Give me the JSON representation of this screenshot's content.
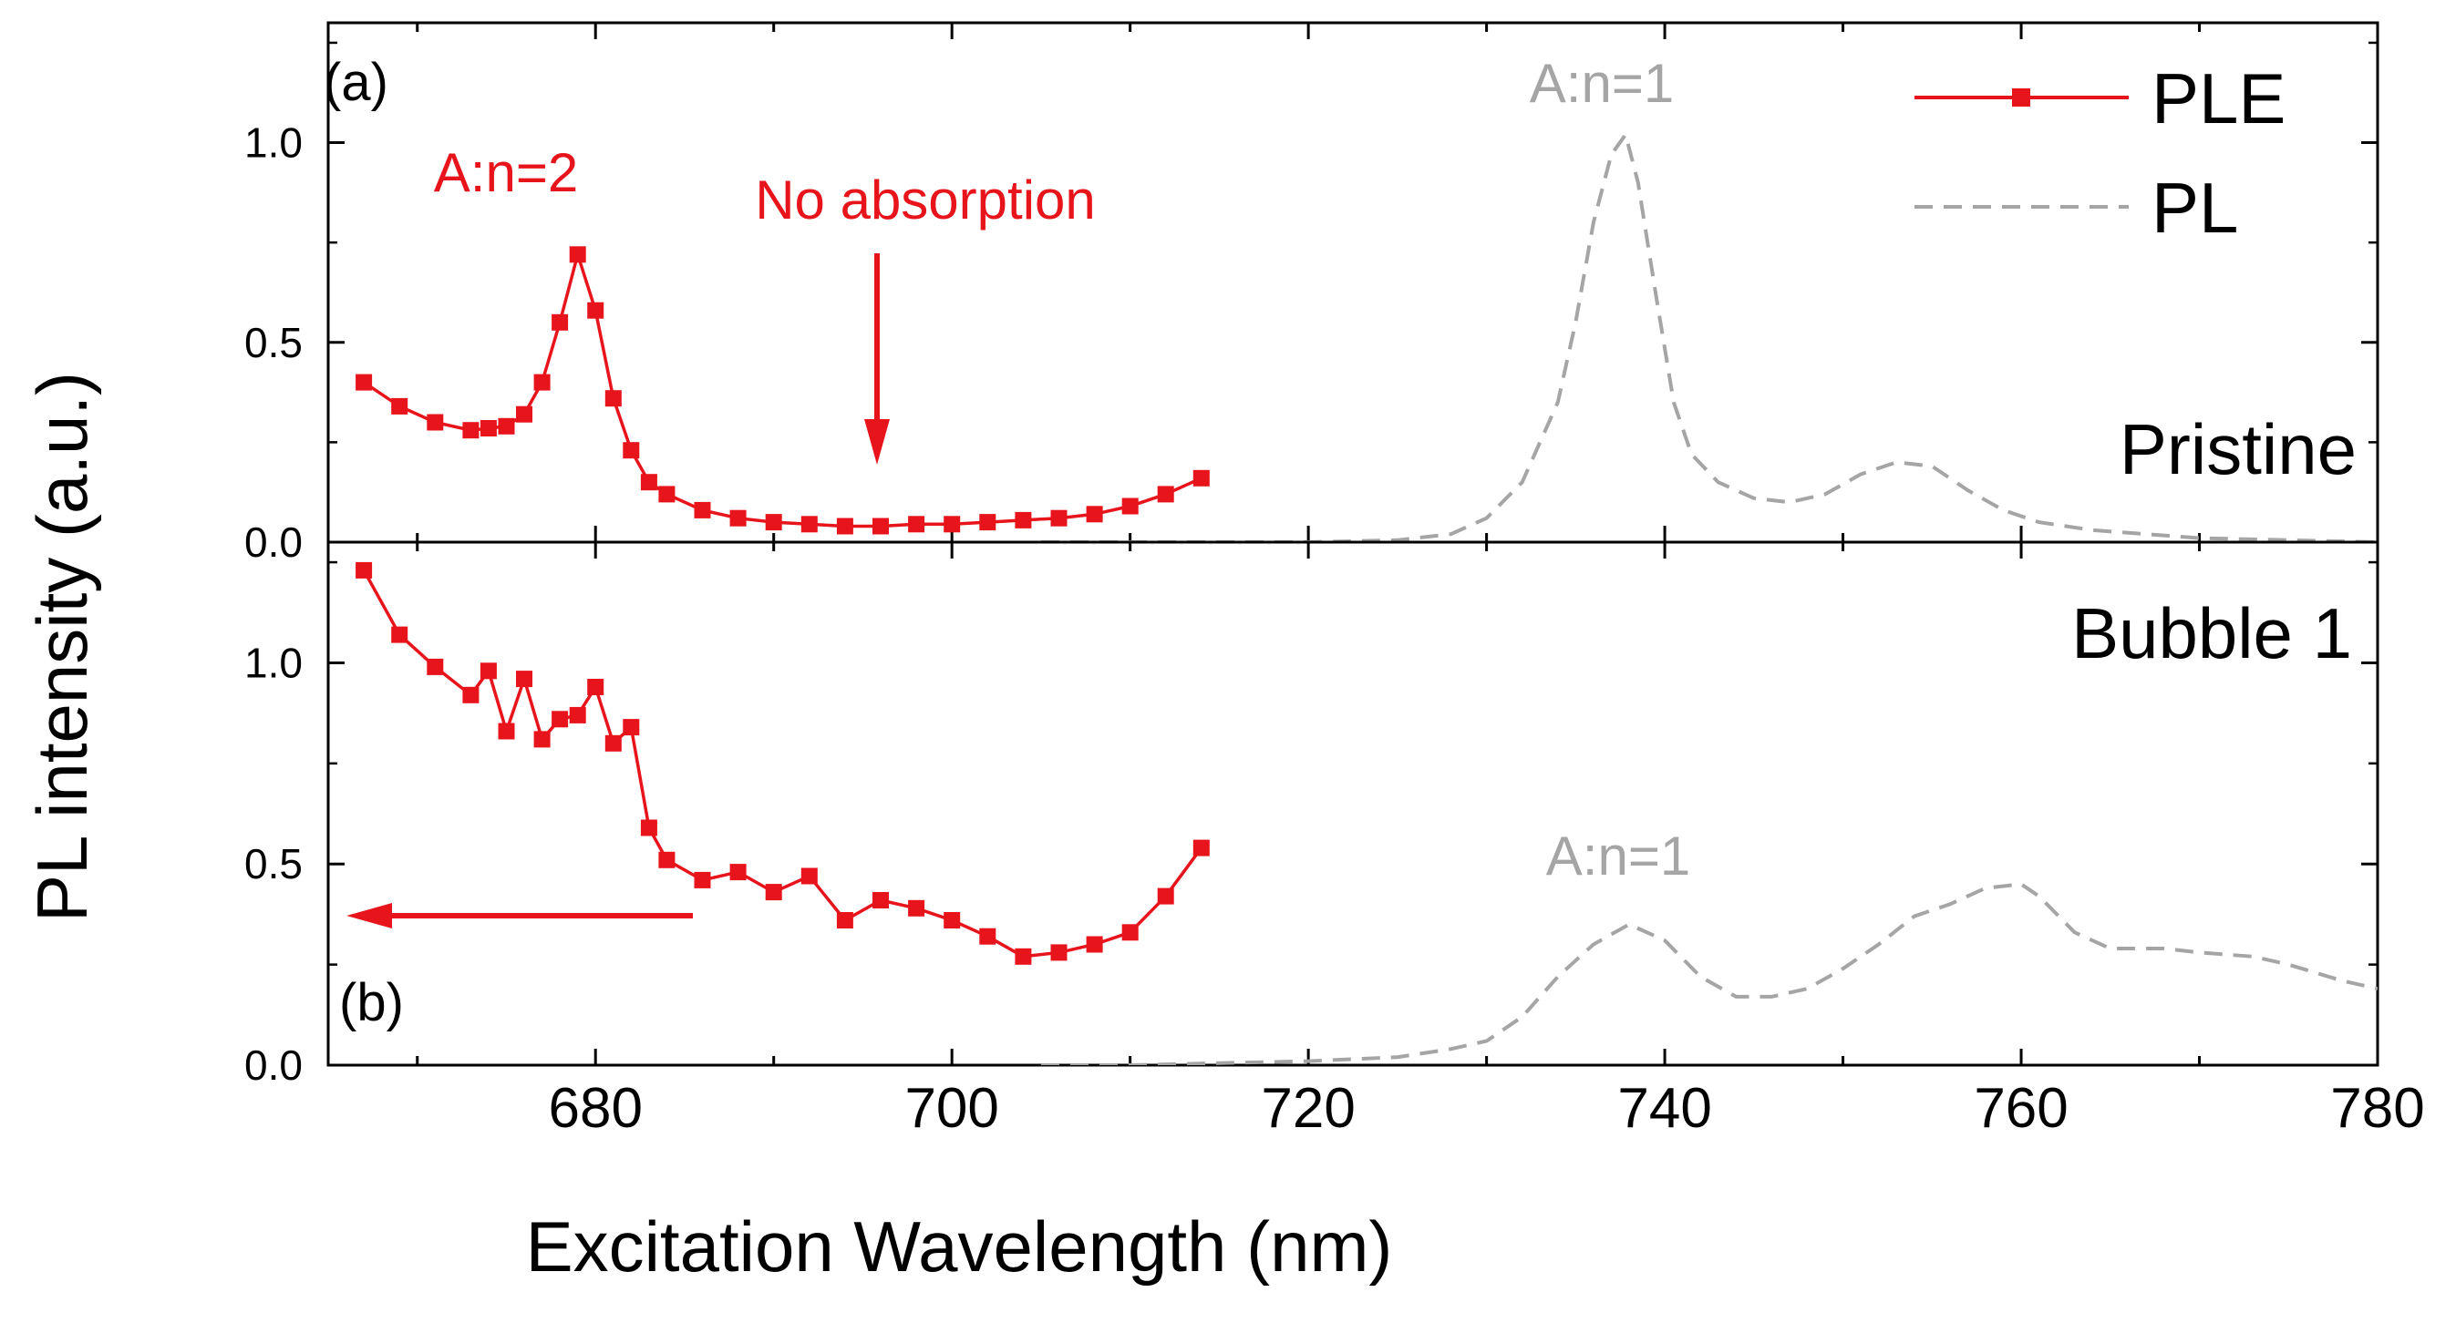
{
  "chart_data": {
    "type": "line",
    "xlabel": "Excitation Wavelength (nm)",
    "ylabel": "PL intensity (a.u.)",
    "xlim": [
      665,
      780
    ],
    "x_ticks": [
      680,
      700,
      720,
      740,
      760,
      780
    ],
    "x_tick_labels": [
      "680",
      "700",
      "720",
      "740",
      "760",
      "780"
    ],
    "legend": [
      {
        "name": "PLE",
        "style": "red line with square markers",
        "color": "#e8141b"
      },
      {
        "name": "PL",
        "style": "gray dashed line",
        "color": "#a5a5a5"
      }
    ],
    "legend_position": "top-right",
    "panels": [
      {
        "id": "a",
        "tag": "(a)",
        "sample_label": "Pristine",
        "ylim": [
          0,
          1.3
        ],
        "y_ticks": [
          0,
          0.5,
          1.0
        ],
        "y_tick_labels": [
          "0.0",
          "0.5",
          "1.0"
        ],
        "series": [
          {
            "name": "PLE",
            "x": [
              667,
              669,
              671,
              673,
              674,
              675,
              676,
              677,
              678,
              679,
              680,
              681,
              682,
              683,
              684,
              686,
              688,
              690,
              692,
              694,
              696,
              698,
              700,
              702,
              704,
              706,
              708,
              710,
              712,
              714
            ],
            "y": [
              0.4,
              0.34,
              0.3,
              0.28,
              0.285,
              0.29,
              0.32,
              0.4,
              0.55,
              0.72,
              0.58,
              0.36,
              0.23,
              0.15,
              0.12,
              0.08,
              0.06,
              0.05,
              0.045,
              0.04,
              0.04,
              0.045,
              0.045,
              0.05,
              0.055,
              0.06,
              0.07,
              0.09,
              0.12,
              0.16
            ]
          },
          {
            "name": "PL",
            "x": [
              705,
              710,
              715,
              720,
              725,
              728,
              730,
              732,
              734,
              735,
              736,
              737,
              737.8,
              738.5,
              739.5,
              740.5,
              741.5,
              743,
              745,
              747,
              749,
              751,
              753,
              755,
              757,
              759,
              761,
              764,
              767,
              770,
              775,
              780
            ],
            "y": [
              0,
              0,
              0,
              0,
              0.005,
              0.02,
              0.06,
              0.15,
              0.35,
              0.55,
              0.8,
              0.97,
              1.02,
              0.9,
              0.62,
              0.35,
              0.22,
              0.15,
              0.11,
              0.1,
              0.12,
              0.17,
              0.2,
              0.19,
              0.13,
              0.08,
              0.05,
              0.03,
              0.02,
              0.01,
              0.005,
              0.0
            ]
          }
        ],
        "annotations": [
          {
            "text": "A:n=2",
            "color": "red"
          },
          {
            "text": "No absorption",
            "color": "red",
            "arrow": "down",
            "x": 697
          },
          {
            "text": "A:n=1",
            "color": "gray"
          }
        ]
      },
      {
        "id": "b",
        "tag": "(b)",
        "sample_label": "Bubble 1",
        "ylim": [
          0,
          1.3
        ],
        "y_ticks": [
          0,
          0.5,
          1.0
        ],
        "y_tick_labels": [
          "0.0",
          "0.5",
          "1.0"
        ],
        "series": [
          {
            "name": "PLE",
            "x": [
              667,
              669,
              671,
              673,
              674,
              675,
              676,
              677,
              678,
              679,
              680,
              681,
              682,
              683,
              684,
              686,
              688,
              690,
              692,
              694,
              696,
              698,
              700,
              702,
              704,
              706,
              708,
              710,
              712,
              714
            ],
            "y": [
              1.23,
              1.07,
              0.99,
              0.92,
              0.98,
              0.83,
              0.96,
              0.81,
              0.86,
              0.87,
              0.94,
              0.8,
              0.84,
              0.59,
              0.51,
              0.46,
              0.48,
              0.43,
              0.47,
              0.36,
              0.41,
              0.39,
              0.36,
              0.32,
              0.27,
              0.28,
              0.3,
              0.33,
              0.42,
              0.54
            ]
          },
          {
            "name": "PL",
            "x": [
              705,
              710,
              715,
              720,
              725,
              728,
              730,
              732,
              734,
              736,
              738,
              740,
              742,
              744,
              746,
              748,
              750,
              752,
              754,
              756,
              758,
              760,
              761,
              763,
              765,
              768,
              770,
              773,
              775,
              778,
              780
            ],
            "y": [
              0,
              0,
              0.005,
              0.01,
              0.02,
              0.04,
              0.06,
              0.12,
              0.22,
              0.3,
              0.35,
              0.31,
              0.22,
              0.17,
              0.17,
              0.19,
              0.24,
              0.3,
              0.37,
              0.4,
              0.44,
              0.45,
              0.42,
              0.33,
              0.29,
              0.29,
              0.28,
              0.27,
              0.25,
              0.21,
              0.19
            ]
          }
        ],
        "annotations": [
          {
            "text": "A:n=1",
            "color": "gray"
          },
          {
            "text": "",
            "color": "red",
            "arrow": "left"
          }
        ]
      }
    ]
  }
}
